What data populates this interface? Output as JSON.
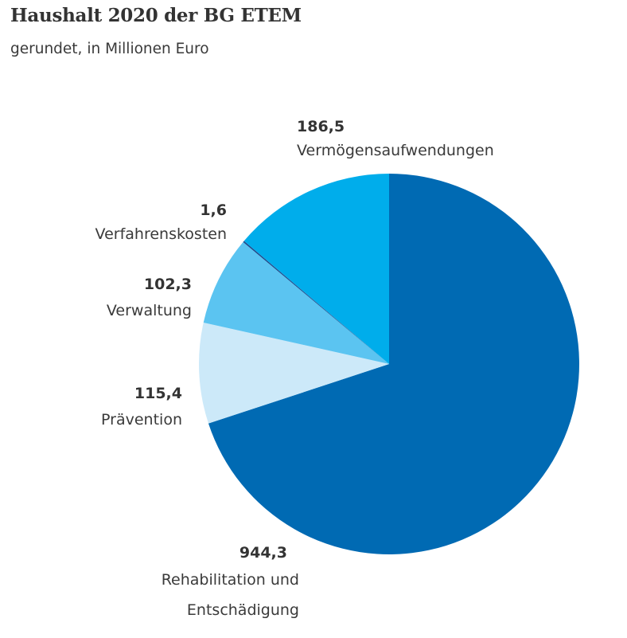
{
  "title": "Haushalt 2020 der BG ETEM",
  "subtitle": "gerundet, in Millionen Euro",
  "chart_data": {
    "type": "pie",
    "title": "Haushalt 2020 der BG ETEM",
    "subtitle": "gerundet, in Millionen Euro",
    "start": "12 o'clock",
    "direction": "clockwise",
    "slices": [
      {
        "label_lines": [
          "Rehabilitation und",
          "Entschädigung"
        ],
        "value": 944.3,
        "value_text": "944,3",
        "color": "#006ab3"
      },
      {
        "label_lines": [
          "Prävention"
        ],
        "value": 115.4,
        "value_text": "115,4",
        "color": "#cce9f9"
      },
      {
        "label_lines": [
          "Verwaltung"
        ],
        "value": 102.3,
        "value_text": "102,3",
        "color": "#5bc4f1"
      },
      {
        "label_lines": [
          "Verfahrenskosten"
        ],
        "value": 1.6,
        "value_text": "1,6",
        "color": "#1d4a8c"
      },
      {
        "label_lines": [
          "Vermögensaufwendungen"
        ],
        "value": 186.5,
        "value_text": "186,5",
        "color": "#00adeb"
      }
    ]
  }
}
